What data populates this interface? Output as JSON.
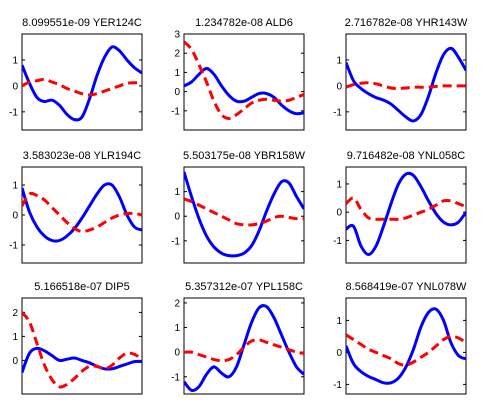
{
  "colors": {
    "blue": "#0000ff",
    "red": "#ff0000",
    "axes": "#000000",
    "background": "#ffffff"
  },
  "chart_data": [
    {
      "type": "line",
      "title": "8.099551e-09 YER124C",
      "ylim": [
        -1.7,
        2.0
      ],
      "yticks": [
        -1,
        0,
        1
      ],
      "grid": false,
      "x": [
        0,
        1,
        2,
        3,
        4,
        5,
        6,
        7,
        8,
        9,
        10,
        11,
        12,
        13,
        14,
        15,
        16
      ],
      "series": [
        {
          "color": "#0000ff",
          "style": "solid",
          "values": [
            0.8,
            0.1,
            -0.45,
            -0.6,
            -0.55,
            -0.75,
            -1.1,
            -1.3,
            -1.2,
            -0.5,
            0.4,
            1.1,
            1.5,
            1.35,
            1.0,
            0.7,
            0.5
          ]
        },
        {
          "color": "#ff0000",
          "style": "dashed",
          "values": [
            0.0,
            0.15,
            0.2,
            0.25,
            0.15,
            0.05,
            -0.1,
            -0.2,
            -0.3,
            -0.35,
            -0.3,
            -0.2,
            -0.1,
            0.0,
            0.1,
            0.12,
            0.1
          ]
        }
      ]
    },
    {
      "type": "line",
      "title": "1.234782e-08 ALD6",
      "ylim": [
        -2.0,
        3.0
      ],
      "yticks": [
        -1,
        0,
        1,
        2,
        3
      ],
      "grid": false,
      "x": [
        0,
        1,
        2,
        3,
        4,
        5,
        6,
        7,
        8,
        9,
        10,
        11,
        12,
        13,
        14,
        15,
        16
      ],
      "series": [
        {
          "color": "#0000ff",
          "style": "solid",
          "values": [
            0.3,
            0.5,
            0.9,
            1.2,
            0.9,
            0.3,
            -0.2,
            -0.5,
            -0.5,
            -0.3,
            -0.1,
            -0.1,
            -0.3,
            -0.7,
            -1.0,
            -1.15,
            -1.1
          ]
        },
        {
          "color": "#ff0000",
          "style": "dashed",
          "values": [
            2.6,
            2.2,
            1.4,
            0.5,
            -0.5,
            -1.2,
            -1.4,
            -1.2,
            -0.9,
            -0.6,
            -0.45,
            -0.4,
            -0.45,
            -0.5,
            -0.45,
            -0.3,
            -0.15
          ]
        }
      ]
    },
    {
      "type": "line",
      "title": "2.716782e-08 YHR143W",
      "ylim": [
        -1.7,
        2.0
      ],
      "yticks": [
        -1,
        0,
        1
      ],
      "grid": false,
      "x": [
        0,
        1,
        2,
        3,
        4,
        5,
        6,
        7,
        8,
        9,
        10,
        11,
        12,
        13,
        14,
        15,
        16
      ],
      "series": [
        {
          "color": "#0000ff",
          "style": "solid",
          "values": [
            0.9,
            0.2,
            -0.1,
            -0.3,
            -0.45,
            -0.55,
            -0.7,
            -0.95,
            -1.2,
            -1.35,
            -1.1,
            -0.4,
            0.5,
            1.2,
            1.45,
            1.1,
            0.6
          ]
        },
        {
          "color": "#ff0000",
          "style": "dashed",
          "values": [
            -0.05,
            0.05,
            0.1,
            0.12,
            0.08,
            0.0,
            -0.08,
            -0.1,
            -0.08,
            -0.05,
            -0.05,
            -0.05,
            -0.02,
            0.0,
            0.0,
            0.0,
            0.0
          ]
        }
      ]
    },
    {
      "type": "line",
      "title": "3.583023e-08 YLR194C",
      "ylim": [
        -1.6,
        1.6
      ],
      "yticks": [
        -1,
        0,
        1
      ],
      "grid": false,
      "x": [
        0,
        1,
        2,
        3,
        4,
        5,
        6,
        7,
        8,
        9,
        10,
        11,
        12,
        13,
        14,
        15,
        16
      ],
      "series": [
        {
          "color": "#0000ff",
          "style": "solid",
          "values": [
            0.9,
            0.1,
            -0.4,
            -0.7,
            -0.85,
            -0.85,
            -0.7,
            -0.45,
            -0.1,
            0.3,
            0.7,
            1.0,
            1.0,
            0.6,
            0.0,
            -0.4,
            -0.5
          ]
        },
        {
          "color": "#ff0000",
          "style": "dashed",
          "values": [
            0.3,
            0.7,
            0.65,
            0.5,
            0.25,
            0.0,
            -0.25,
            -0.45,
            -0.55,
            -0.5,
            -0.4,
            -0.25,
            -0.1,
            0.0,
            0.05,
            0.05,
            0.0
          ]
        }
      ]
    },
    {
      "type": "line",
      "title": "5.503175e-08 YBR158W",
      "ylim": [
        -1.9,
        2.0
      ],
      "yticks": [
        -1,
        0,
        1
      ],
      "grid": false,
      "x": [
        0,
        1,
        2,
        3,
        4,
        5,
        6,
        7,
        8,
        9,
        10,
        11,
        12,
        13,
        14,
        15,
        16
      ],
      "series": [
        {
          "color": "#0000ff",
          "style": "solid",
          "values": [
            1.8,
            0.8,
            -0.1,
            -0.8,
            -1.25,
            -1.5,
            -1.6,
            -1.6,
            -1.5,
            -1.2,
            -0.6,
            0.2,
            0.9,
            1.4,
            1.35,
            0.8,
            0.3
          ]
        },
        {
          "color": "#ff0000",
          "style": "dashed",
          "values": [
            0.7,
            0.6,
            0.45,
            0.3,
            0.15,
            0.0,
            -0.15,
            -0.3,
            -0.35,
            -0.35,
            -0.3,
            -0.2,
            -0.05,
            0.0,
            -0.05,
            -0.1,
            -0.1
          ]
        }
      ]
    },
    {
      "type": "line",
      "title": "9.716482e-08 YNL058C",
      "ylim": [
        -1.8,
        1.6
      ],
      "yticks": [
        -1,
        0,
        1
      ],
      "grid": false,
      "x": [
        0,
        1,
        2,
        3,
        4,
        5,
        6,
        7,
        8,
        9,
        10,
        11,
        12,
        13,
        14,
        15,
        16
      ],
      "series": [
        {
          "color": "#0000ff",
          "style": "solid",
          "values": [
            -0.6,
            -0.5,
            -1.2,
            -1.5,
            -1.2,
            -0.5,
            0.3,
            1.0,
            1.35,
            1.3,
            0.9,
            0.4,
            -0.05,
            -0.35,
            -0.45,
            -0.35,
            0.0
          ]
        },
        {
          "color": "#ff0000",
          "style": "dashed",
          "values": [
            0.3,
            0.5,
            0.1,
            -0.2,
            -0.25,
            -0.25,
            -0.25,
            -0.25,
            -0.2,
            -0.1,
            0.0,
            0.1,
            0.25,
            0.4,
            0.4,
            0.3,
            0.2
          ]
        }
      ]
    },
    {
      "type": "line",
      "title": "5.166518e-07 DIP5",
      "ylim": [
        -1.4,
        2.6
      ],
      "yticks": [
        0,
        1,
        2
      ],
      "grid": false,
      "x": [
        0,
        1,
        2,
        3,
        4,
        5,
        6,
        7,
        8,
        9,
        10,
        11,
        12,
        13,
        14,
        15,
        16
      ],
      "series": [
        {
          "color": "#0000ff",
          "style": "solid",
          "values": [
            -0.5,
            0.3,
            0.5,
            0.4,
            0.2,
            0.0,
            0.05,
            0.1,
            0.0,
            -0.1,
            -0.25,
            -0.35,
            -0.35,
            -0.25,
            -0.15,
            -0.05,
            -0.05
          ]
        },
        {
          "color": "#ff0000",
          "style": "dashed",
          "values": [
            2.0,
            1.6,
            0.7,
            -0.2,
            -0.8,
            -1.1,
            -1.0,
            -0.75,
            -0.45,
            -0.25,
            -0.25,
            -0.35,
            -0.2,
            0.1,
            0.3,
            0.25,
            0.05
          ]
        }
      ]
    },
    {
      "type": "line",
      "title": "5.357312e-07 YPL158C",
      "ylim": [
        -1.7,
        2.2
      ],
      "yticks": [
        -1,
        0,
        1,
        2
      ],
      "grid": false,
      "x": [
        0,
        1,
        2,
        3,
        4,
        5,
        6,
        7,
        8,
        9,
        10,
        11,
        12,
        13,
        14,
        15,
        16
      ],
      "series": [
        {
          "color": "#0000ff",
          "style": "solid",
          "values": [
            -1.2,
            -1.55,
            -1.4,
            -0.9,
            -0.6,
            -0.85,
            -1.0,
            -0.6,
            0.3,
            1.2,
            1.8,
            1.85,
            1.4,
            0.7,
            0.0,
            -0.6,
            -0.9
          ]
        },
        {
          "color": "#ff0000",
          "style": "dashed",
          "values": [
            0.0,
            0.0,
            -0.1,
            -0.2,
            -0.3,
            -0.35,
            -0.3,
            -0.1,
            0.2,
            0.45,
            0.5,
            0.4,
            0.3,
            0.2,
            0.1,
            0.0,
            -0.05
          ]
        }
      ]
    },
    {
      "type": "line",
      "title": "8.568419e-07 YNL078W",
      "ylim": [
        -1.3,
        1.7
      ],
      "yticks": [
        -1,
        0,
        1
      ],
      "grid": false,
      "x": [
        0,
        1,
        2,
        3,
        4,
        5,
        6,
        7,
        8,
        9,
        10,
        11,
        12,
        13,
        14,
        15,
        16
      ],
      "series": [
        {
          "color": "#0000ff",
          "style": "solid",
          "values": [
            0.2,
            -0.35,
            -0.6,
            -0.75,
            -0.85,
            -0.95,
            -0.95,
            -0.8,
            -0.45,
            0.1,
            0.8,
            1.25,
            1.35,
            1.0,
            0.3,
            -0.1,
            -0.2
          ]
        },
        {
          "color": "#ff0000",
          "style": "dashed",
          "values": [
            0.55,
            0.4,
            0.25,
            0.1,
            0.0,
            -0.1,
            -0.2,
            -0.35,
            -0.4,
            -0.3,
            -0.15,
            0.0,
            0.2,
            0.4,
            0.5,
            0.45,
            0.3
          ]
        }
      ]
    }
  ]
}
